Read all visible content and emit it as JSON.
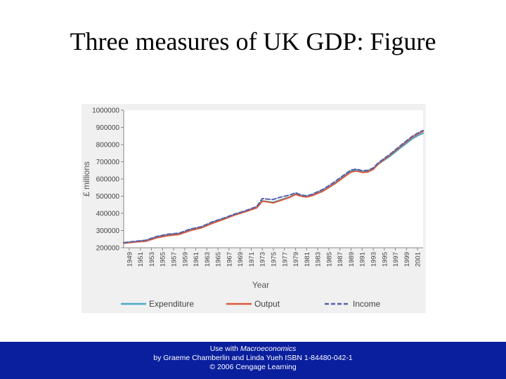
{
  "slide": {
    "title": "Three measures of UK GDP: Figure"
  },
  "footer": {
    "line1_prefix": "Use with ",
    "line1_book": "Macroeconomics",
    "line2": "by Graeme Chamberlin and Linda Yueh ISBN 1-84480-042-1",
    "line3": "© 2006 Cengage Learning"
  },
  "chart_data": {
    "type": "line",
    "xlabel": "Year",
    "ylabel": "£ millions",
    "ylim": [
      200000,
      1000000
    ],
    "yticks": [
      200000,
      300000,
      400000,
      500000,
      600000,
      700000,
      800000,
      900000,
      1000000
    ],
    "ytick_labels": [
      "200000",
      "300000",
      "400000",
      "500000",
      "600000",
      "700000",
      "800000",
      "900000",
      "1000000"
    ],
    "xlim": [
      1948,
      2002
    ],
    "xticks": [
      "1949",
      "1951",
      "1953",
      "1955",
      "1957",
      "1959",
      "1961",
      "1963",
      "1965",
      "1967",
      "1969",
      "1971",
      "1973",
      "1975",
      "1977",
      "1979",
      "1981",
      "1983",
      "1985",
      "1987",
      "1989",
      "1991",
      "1993",
      "1995",
      "1997",
      "1999",
      "2001"
    ],
    "x": [
      1948,
      1950,
      1952,
      1954,
      1956,
      1958,
      1960,
      1962,
      1964,
      1966,
      1968,
      1970,
      1972,
      1973,
      1974,
      1975,
      1976,
      1978,
      1979,
      1980,
      1981,
      1982,
      1984,
      1986,
      1988,
      1989,
      1990,
      1991,
      1992,
      1993,
      1994,
      1996,
      1998,
      2000,
      2001,
      2002
    ],
    "series": [
      {
        "name": "Expenditure",
        "color": "#49a9c5",
        "dash": "solid",
        "values": [
          228000,
          235000,
          242000,
          264000,
          276000,
          282000,
          305000,
          318000,
          347000,
          368000,
          392000,
          412000,
          434000,
          473000,
          468000,
          465000,
          476000,
          496000,
          512000,
          503000,
          498000,
          506000,
          534000,
          574000,
          622000,
          645000,
          651000,
          642000,
          644000,
          658000,
          688000,
          731000,
          782000,
          832000,
          851000,
          866000
        ]
      },
      {
        "name": "Output",
        "color": "#d9593c",
        "dash": "solid",
        "values": [
          226000,
          233000,
          238000,
          258000,
          270000,
          277000,
          300000,
          315000,
          342000,
          365000,
          390000,
          410000,
          432000,
          470000,
          466000,
          461000,
          472000,
          494000,
          510000,
          500000,
          495000,
          503000,
          530000,
          570000,
          617000,
          640000,
          646000,
          638000,
          640000,
          655000,
          690000,
          738000,
          790000,
          842000,
          861000,
          877000
        ]
      },
      {
        "name": "Income",
        "color": "#5561a8",
        "dash": "dashed",
        "values": [
          230000,
          237000,
          244000,
          266000,
          279000,
          285000,
          309000,
          322000,
          351000,
          372000,
          396000,
          416000,
          440000,
          486000,
          483000,
          481000,
          492000,
          507000,
          520000,
          507000,
          502000,
          511000,
          541000,
          582000,
          630000,
          652000,
          657000,
          648000,
          650000,
          664000,
          696000,
          743000,
          796000,
          847000,
          866000,
          882000
        ]
      }
    ],
    "grid": false,
    "legend_position": "bottom"
  }
}
